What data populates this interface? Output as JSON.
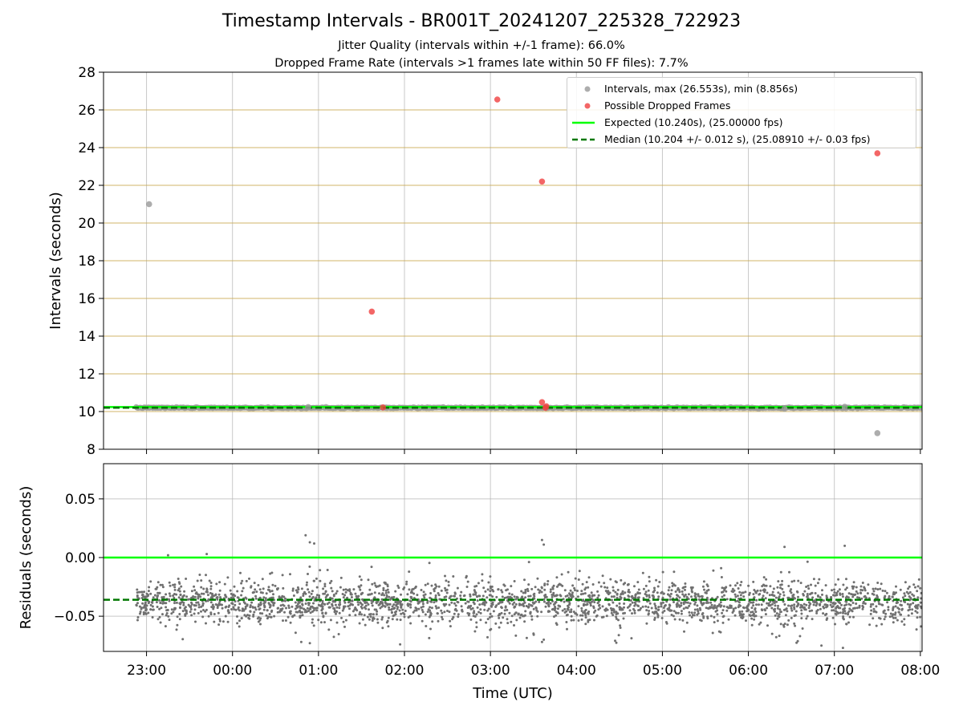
{
  "figure": {
    "title": "Timestamp Intervals - BR001T_20241207_225328_722923",
    "subtitle_1": "Jitter Quality (intervals within +/-1 frame): 66.0%",
    "subtitle_2": "Dropped Frame Rate (intervals >1 frames late within 50 FF files): 7.7%"
  },
  "legend": {
    "intervals_label": "Intervals, max (26.553s), min (8.856s)",
    "dropped_label": "Possible Dropped Frames",
    "expected_label": "Expected (10.240s), (25.00000 fps)",
    "median_label": "Median (10.204 +/- 0.012 s), (25.08910 +/- 0.03 fps)"
  },
  "colors": {
    "intervals": "#999999",
    "dropped": "#f04040",
    "expected": "#00ff00",
    "median": "#007800",
    "grid": "#b0b0b0",
    "hline": "#c8a850",
    "residual_points": "#707070"
  },
  "chart_data": [
    {
      "type": "scatter",
      "ylabel": "Intervals (seconds)",
      "xlabel": "",
      "x_unit": "hours since 00:00 UTC (negative = previous day)",
      "xlim": [
        -1.5,
        8.02
      ],
      "ylim": [
        8,
        28
      ],
      "yticks": [
        8,
        10,
        12,
        14,
        16,
        18,
        20,
        22,
        24,
        26,
        28
      ],
      "xticks": [
        -1,
        0,
        1,
        2,
        3,
        4,
        5,
        6,
        7,
        8
      ],
      "xtick_labels": [
        "23:00",
        "00:00",
        "01:00",
        "02:00",
        "03:00",
        "04:00",
        "05:00",
        "06:00",
        "07:00",
        "08:00"
      ],
      "grid": true,
      "legend_position": "top-right",
      "expected_interval": 10.24,
      "median_interval": 10.204,
      "baseline_band": {
        "x_start": -1.12,
        "x_end": 8.02,
        "y": 10.2
      },
      "series": [
        {
          "name": "Intervals",
          "points": [
            [
              -0.97,
              21.0
            ],
            [
              0.88,
              10.24
            ],
            [
              7.5,
              8.856
            ],
            [
              7.12,
              10.25
            ],
            [
              6.42,
              10.15
            ]
          ]
        },
        {
          "name": "Possible Dropped Frames",
          "points": [
            [
              1.62,
              15.3
            ],
            [
              1.75,
              10.22
            ],
            [
              3.08,
              26.553
            ],
            [
              3.6,
              22.2
            ],
            [
              3.6,
              10.5
            ],
            [
              3.64,
              10.2
            ],
            [
              3.65,
              10.28
            ],
            [
              7.5,
              23.7
            ]
          ]
        }
      ]
    },
    {
      "type": "scatter",
      "ylabel": "Residuals (seconds)",
      "xlabel": "Time (UTC)",
      "x_unit": "hours since 00:00 UTC (negative = previous day)",
      "xlim": [
        -1.5,
        8.02
      ],
      "ylim": [
        -0.08,
        0.08
      ],
      "yticks": [
        -0.05,
        0.0,
        0.05
      ],
      "ytick_labels": [
        "−0.05",
        "0.00",
        "0.05"
      ],
      "xticks": [
        -1,
        0,
        1,
        2,
        3,
        4,
        5,
        6,
        7,
        8
      ],
      "xtick_labels": [
        "23:00",
        "00:00",
        "01:00",
        "02:00",
        "03:00",
        "04:00",
        "05:00",
        "06:00",
        "07:00",
        "08:00"
      ],
      "grid": true,
      "expected_residual": 0.0,
      "median_residual": -0.036,
      "residual_cloud": {
        "x_start": -1.12,
        "x_end": 8.02,
        "center": -0.038,
        "spread": 0.009,
        "count": 2600
      },
      "series": [
        {
          "name": "Residuals (outliers)",
          "points": [
            [
              0.85,
              0.019
            ],
            [
              0.9,
              0.013
            ],
            [
              0.95,
              0.012
            ],
            [
              3.6,
              0.015
            ],
            [
              3.62,
              0.011
            ],
            [
              7.12,
              0.01
            ],
            [
              6.42,
              0.009
            ],
            [
              -0.3,
              0.003
            ],
            [
              -0.75,
              0.002
            ],
            [
              0.8,
              -0.072
            ],
            [
              0.9,
              -0.073
            ],
            [
              3.6,
              -0.072
            ],
            [
              3.62,
              -0.07
            ],
            [
              7.1,
              -0.077
            ],
            [
              6.85,
              -0.075
            ],
            [
              4.45,
              -0.071
            ],
            [
              1.95,
              -0.074
            ]
          ]
        }
      ]
    }
  ]
}
